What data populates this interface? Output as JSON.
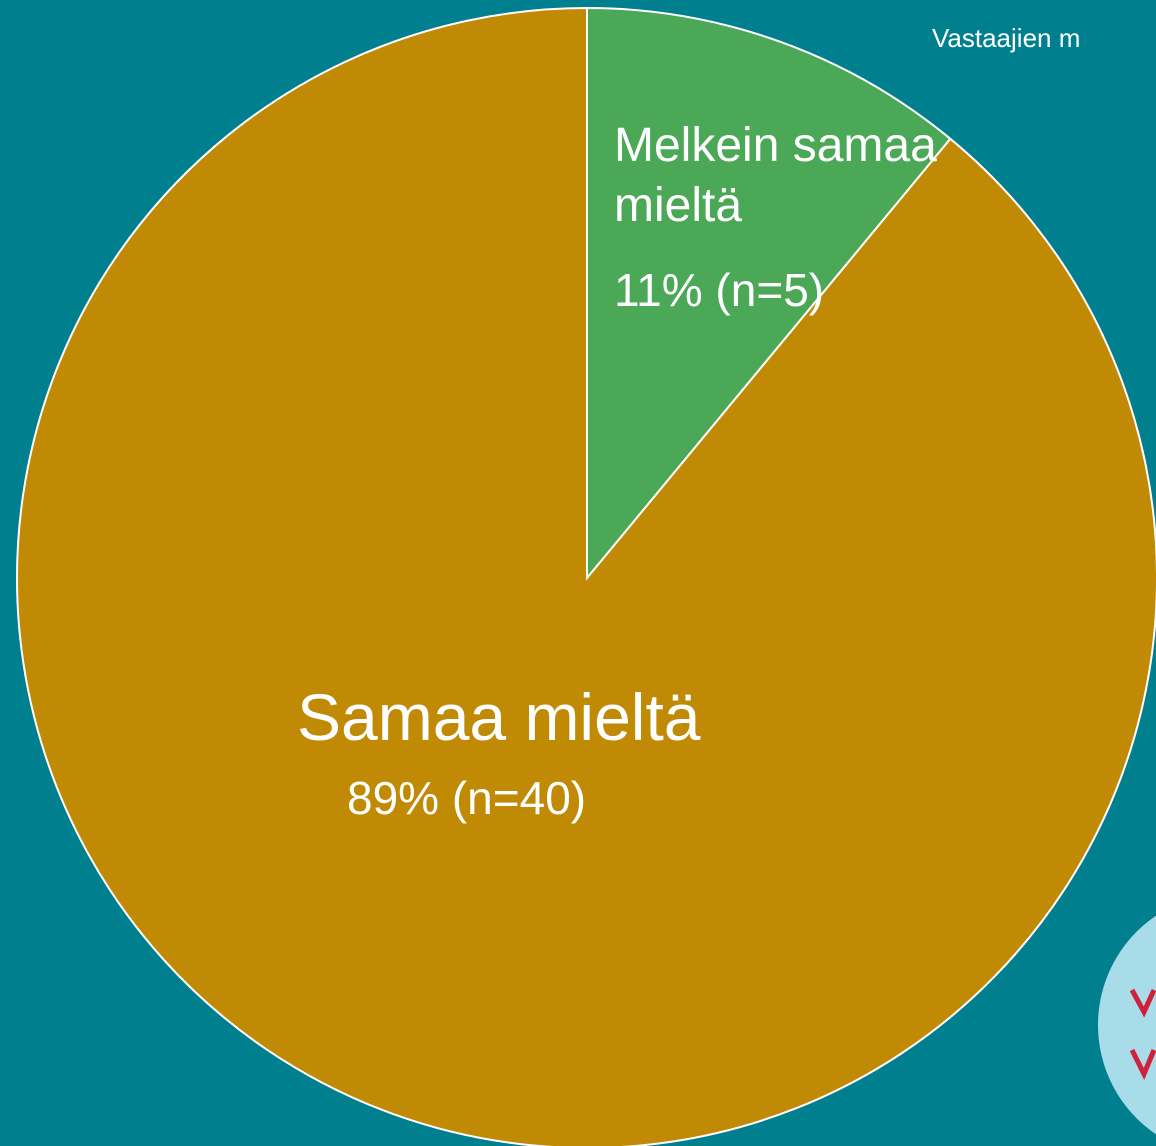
{
  "chart_data": {
    "type": "pie",
    "note": "Vastaajien m",
    "categories": [
      "Melkein samaa mieltä",
      "Samaa mieltä"
    ],
    "values": [
      11,
      89
    ],
    "value_labels": [
      "11% (n=5)",
      "89% (n=40)"
    ],
    "colors": [
      "#4aa856",
      "#c08a04"
    ],
    "start_angle": 0,
    "direction": "clockwise"
  }
}
